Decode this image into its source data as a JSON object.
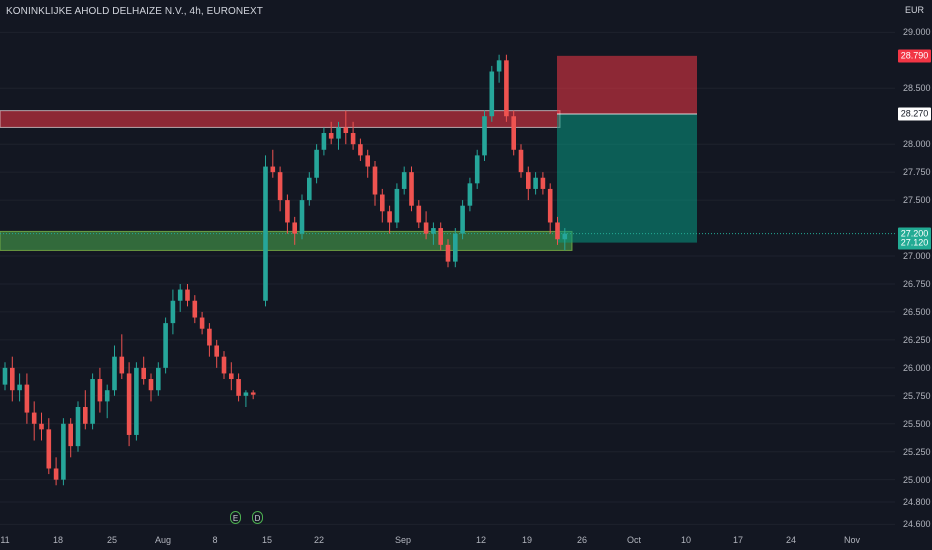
{
  "symbol_title": "KONINKLIJKE AHOLD DELHAIZE N.V., 4h, EURONEXT",
  "currency": "EUR",
  "price_axis_ticks": [
    {
      "label": "29.000",
      "value": 29.0
    },
    {
      "label": "28.500",
      "value": 28.5
    },
    {
      "label": "28.000",
      "value": 28.0
    },
    {
      "label": "27.750",
      "value": 27.75
    },
    {
      "label": "27.500",
      "value": 27.5
    },
    {
      "label": "27.000",
      "value": 27.0
    },
    {
      "label": "26.750",
      "value": 26.75
    },
    {
      "label": "26.500",
      "value": 26.5
    },
    {
      "label": "26.250",
      "value": 26.25
    },
    {
      "label": "26.000",
      "value": 26.0
    },
    {
      "label": "25.750",
      "value": 25.75
    },
    {
      "label": "25.500",
      "value": 25.5
    },
    {
      "label": "25.250",
      "value": 25.25
    },
    {
      "label": "25.000",
      "value": 25.0
    },
    {
      "label": "24.800",
      "value": 24.8
    },
    {
      "label": "24.600",
      "value": 24.6
    }
  ],
  "time_axis_ticks": [
    "11",
    "18",
    "25",
    "Aug",
    "8",
    "15",
    "22",
    "Sep",
    "12",
    "19",
    "26",
    "Oct",
    "10",
    "17",
    "24",
    "Nov"
  ],
  "price_tags": {
    "stop": {
      "label": "28.790",
      "value": 28.79,
      "bg": "#f23645",
      "fg": "#ffffff"
    },
    "entry": {
      "label": "28.270",
      "value": 28.27,
      "bg": "#ffffff",
      "fg": "#131722"
    },
    "current": {
      "label": "27.200",
      "value": 27.2,
      "bg": "#22ab94",
      "fg": "#ffffff"
    },
    "target": {
      "label": "27.120",
      "value": 27.12,
      "bg": "#22ab94",
      "fg": "#ffffff"
    }
  },
  "zones": {
    "resistance": {
      "from": 28.15,
      "to": 28.3,
      "color": "#f23645"
    },
    "support": {
      "from": 27.05,
      "to": 27.22,
      "color": "#4caf50"
    }
  },
  "short_position": {
    "stop": 28.79,
    "entry": 28.27,
    "target": 27.12
  },
  "event_badges": [
    {
      "label": "E",
      "name": "earnings-event-icon"
    },
    {
      "label": "D",
      "name": "dividend-event-icon"
    }
  ],
  "colors": {
    "up": "#26a69a",
    "down": "#ef5350",
    "background": "#131722",
    "grid": "#1e222d"
  },
  "chart_data": {
    "type": "candlestick",
    "title": "KONINKLIJKE AHOLD DELHAIZE N.V., 4h, EURONEXT",
    "ylabel": "EUR",
    "ylim": [
      24.55,
      29.2
    ],
    "candles": [
      [
        25.85,
        26.05,
        25.8,
        26.0
      ],
      [
        26.0,
        26.1,
        25.7,
        25.8
      ],
      [
        25.8,
        25.95,
        25.7,
        25.85
      ],
      [
        25.85,
        25.95,
        25.5,
        25.6
      ],
      [
        25.6,
        25.7,
        25.35,
        25.5
      ],
      [
        25.5,
        25.6,
        25.35,
        25.45
      ],
      [
        25.45,
        25.55,
        25.05,
        25.1
      ],
      [
        25.1,
        25.2,
        24.95,
        25.0
      ],
      [
        25.0,
        25.55,
        24.95,
        25.5
      ],
      [
        25.5,
        25.55,
        25.2,
        25.3
      ],
      [
        25.3,
        25.7,
        25.25,
        25.65
      ],
      [
        25.65,
        25.8,
        25.45,
        25.5
      ],
      [
        25.5,
        25.95,
        25.45,
        25.9
      ],
      [
        25.9,
        26.0,
        25.6,
        25.7
      ],
      [
        25.7,
        25.85,
        25.55,
        25.8
      ],
      [
        25.8,
        26.2,
        25.75,
        26.1
      ],
      [
        26.1,
        26.3,
        25.9,
        25.95
      ],
      [
        25.95,
        26.05,
        25.3,
        25.4
      ],
      [
        25.4,
        26.05,
        25.35,
        26.0
      ],
      [
        26.0,
        26.1,
        25.85,
        25.9
      ],
      [
        25.9,
        25.95,
        25.7,
        25.8
      ],
      [
        25.8,
        26.05,
        25.75,
        26.0
      ],
      [
        26.0,
        26.45,
        25.95,
        26.4
      ],
      [
        26.4,
        26.7,
        26.3,
        26.6
      ],
      [
        26.6,
        26.75,
        26.5,
        26.7
      ],
      [
        26.7,
        26.75,
        26.55,
        26.6
      ],
      [
        26.6,
        26.65,
        26.4,
        26.45
      ],
      [
        26.45,
        26.5,
        26.3,
        26.35
      ],
      [
        26.35,
        26.4,
        26.1,
        26.2
      ],
      [
        26.2,
        26.25,
        26.0,
        26.1
      ],
      [
        26.1,
        26.15,
        25.9,
        25.95
      ],
      [
        25.95,
        26.05,
        25.8,
        25.9
      ],
      [
        25.9,
        25.95,
        25.7,
        25.75
      ],
      [
        25.75,
        25.8,
        25.65,
        25.78
      ],
      [
        25.78,
        25.8,
        25.72,
        25.76
      ],
      [
        26.6,
        27.9,
        26.55,
        27.8
      ],
      [
        27.8,
        27.95,
        27.7,
        27.75
      ],
      [
        27.75,
        27.8,
        27.4,
        27.5
      ],
      [
        27.5,
        27.55,
        27.2,
        27.3
      ],
      [
        27.3,
        27.35,
        27.1,
        27.2
      ],
      [
        27.2,
        27.55,
        27.15,
        27.5
      ],
      [
        27.5,
        27.75,
        27.45,
        27.7
      ],
      [
        27.7,
        28.0,
        27.65,
        27.95
      ],
      [
        27.95,
        28.15,
        27.9,
        28.1
      ],
      [
        28.1,
        28.2,
        28.0,
        28.05
      ],
      [
        28.05,
        28.2,
        27.95,
        28.15
      ],
      [
        28.15,
        28.3,
        28.0,
        28.1
      ],
      [
        28.1,
        28.2,
        27.95,
        28.0
      ],
      [
        28.0,
        28.05,
        27.85,
        27.9
      ],
      [
        27.9,
        27.95,
        27.7,
        27.8
      ],
      [
        27.8,
        27.85,
        27.45,
        27.55
      ],
      [
        27.55,
        27.6,
        27.3,
        27.4
      ],
      [
        27.4,
        27.45,
        27.2,
        27.3
      ],
      [
        27.3,
        27.65,
        27.25,
        27.6
      ],
      [
        27.6,
        27.8,
        27.55,
        27.75
      ],
      [
        27.75,
        27.8,
        27.4,
        27.45
      ],
      [
        27.45,
        27.5,
        27.25,
        27.3
      ],
      [
        27.3,
        27.4,
        27.15,
        27.2
      ],
      [
        27.2,
        27.3,
        27.1,
        27.25
      ],
      [
        27.25,
        27.3,
        27.05,
        27.1
      ],
      [
        27.1,
        27.15,
        26.9,
        26.95
      ],
      [
        26.95,
        27.25,
        26.9,
        27.2
      ],
      [
        27.2,
        27.5,
        27.15,
        27.45
      ],
      [
        27.45,
        27.7,
        27.4,
        27.65
      ],
      [
        27.65,
        27.95,
        27.6,
        27.9
      ],
      [
        27.9,
        28.3,
        27.85,
        28.25
      ],
      [
        28.25,
        28.7,
        28.2,
        28.65
      ],
      [
        28.65,
        28.8,
        28.55,
        28.75
      ],
      [
        28.75,
        28.8,
        28.2,
        28.25
      ],
      [
        28.25,
        28.3,
        27.9,
        27.95
      ],
      [
        27.95,
        28.0,
        27.7,
        27.75
      ],
      [
        27.75,
        27.8,
        27.5,
        27.6
      ],
      [
        27.6,
        27.75,
        27.55,
        27.7
      ],
      [
        27.7,
        27.75,
        27.55,
        27.6
      ],
      [
        27.6,
        27.65,
        27.2,
        27.3
      ],
      [
        27.3,
        27.35,
        27.1,
        27.15
      ],
      [
        27.15,
        27.25,
        27.05,
        27.2
      ]
    ]
  }
}
